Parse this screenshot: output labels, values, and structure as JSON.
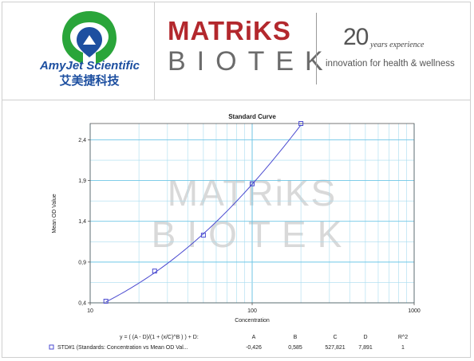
{
  "header": {
    "amyjet_name": "AmyJet Scientific",
    "amyjet_chinese": "艾美捷科技",
    "matriks_top": "MATRiKS",
    "matriks_bottom": "BIOTEK",
    "years_number": "20",
    "years_text": "years experience",
    "tagline": "innovation for health & wellness",
    "colors": {
      "amyjet_blue": "#1d4fa0",
      "amyjet_green": "#2aa53a",
      "matriks_red": "#b3282d",
      "matriks_gray": "#6b6b6b"
    }
  },
  "chart_data": {
    "type": "scatter",
    "title": "Standard Curve",
    "xlabel": "Concentration",
    "ylabel": "Mean OD Value",
    "xscale": "log",
    "xlim": [
      10,
      1000
    ],
    "ylim": [
      0.4,
      2.6
    ],
    "x_ticks": [
      10,
      100,
      1000
    ],
    "x_tick_labels": [
      "10",
      "100",
      "1000"
    ],
    "y_ticks": [
      0.4,
      0.9,
      1.4,
      1.9,
      2.4
    ],
    "y_tick_labels": [
      "0,4",
      "0,9",
      "1,4",
      "1,9",
      "2,4"
    ],
    "grid": true,
    "watermark": [
      "MATRiKS",
      "BIOTEK"
    ],
    "series": [
      {
        "name": "STD#1 (Standards: Concentration vs Mean OD Val...",
        "x": [
          12.5,
          25,
          50,
          100,
          200
        ],
        "y": [
          0.42,
          0.79,
          1.23,
          1.86,
          2.6
        ],
        "color": "#4a4ad0",
        "marker": "square"
      }
    ],
    "fit": {
      "equation": "y = ( (A - D)/(1 + (x/C)^B ) ) + D:",
      "headers": [
        "A",
        "B",
        "C",
        "D",
        "R^2"
      ],
      "values": [
        "-0,426",
        "0,585",
        "527,821",
        "7,891",
        "1"
      ],
      "params": {
        "A": -0.426,
        "B": 0.585,
        "C": 527.821,
        "D": 7.891,
        "R2": 1
      }
    }
  }
}
